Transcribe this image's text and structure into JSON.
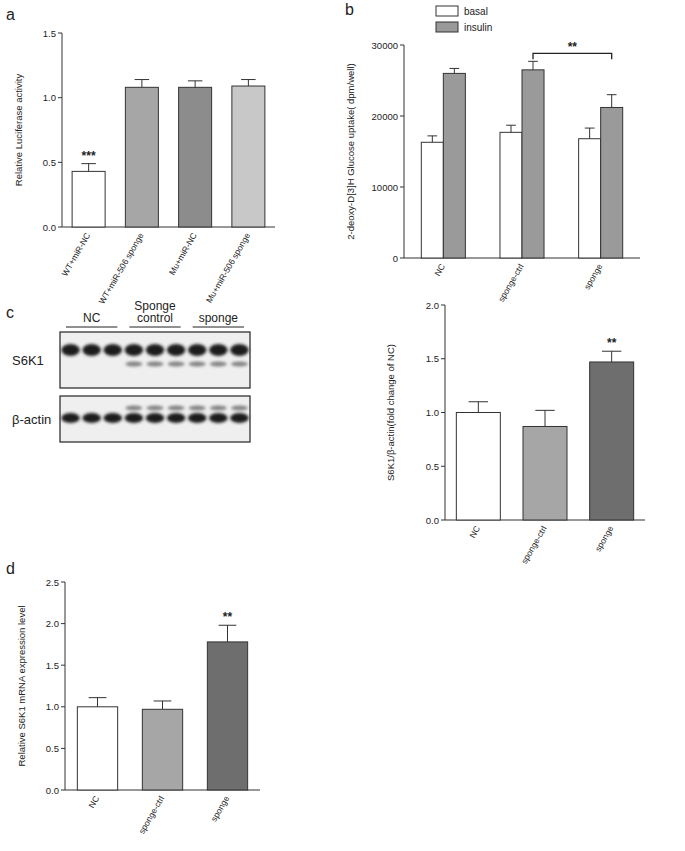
{
  "panels": [
    "a",
    "b",
    "c",
    "d"
  ],
  "blot": {
    "groups": [
      "NC",
      "Sponge control",
      "sponge"
    ],
    "rows": [
      "S6K1",
      "β-actin"
    ],
    "lanes_per_group": 3
  },
  "chart_data": [
    {
      "type": "bar",
      "y_label": "Relative Luciferase activity",
      "categories": [
        "WT+miR-NC",
        "WT+miR-506 sponge",
        "Mu+miR-NC",
        "Mu+miR-506 sponge"
      ],
      "values": [
        0.43,
        1.08,
        1.08,
        1.09
      ],
      "errors": [
        0.06,
        0.06,
        0.05,
        0.05
      ],
      "colors": [
        "#ffffff",
        "#a6a6a6",
        "#8c8c8c",
        "#c8c8c8"
      ],
      "annotations": [
        "***",
        null,
        null,
        null
      ],
      "ylim": [
        0,
        1.5
      ],
      "yticks": [
        {
          "value": 0,
          "label": "0.0"
        },
        {
          "value": 0.5,
          "label": "0.5"
        },
        {
          "value": 1.0,
          "label": "1.0"
        },
        {
          "value": 1.5,
          "label": "1.5"
        }
      ],
      "grid": false
    },
    {
      "type": "bar",
      "y_label": "2-deoxy-D[3]H Glucose uptake( dpm/well)",
      "categories": [
        "NC",
        "sponge-ctrl",
        "sponge"
      ],
      "series": [
        {
          "name": "basal",
          "color": "#ffffff",
          "values": [
            16300,
            17700,
            16800
          ],
          "errors": [
            900,
            1000,
            1500
          ]
        },
        {
          "name": "insulin",
          "color": "#9a9a9a",
          "values": [
            26000,
            26500,
            21200
          ],
          "errors": [
            700,
            1200,
            1800
          ]
        }
      ],
      "bracket": {
        "text": "**",
        "between": [
          "sponge-ctrl",
          "sponge"
        ],
        "series": "insulin"
      },
      "ylim": [
        0,
        30000
      ],
      "yticks": [
        0,
        10000,
        20000,
        30000
      ],
      "legend": "top-left",
      "grid": false
    },
    {
      "type": "bar",
      "y_label": "S6K1/β-actin(fold change of NC)",
      "categories": [
        "NC",
        "sponge-ctrl",
        "sponge"
      ],
      "values": [
        1.0,
        0.87,
        1.47
      ],
      "errors": [
        0.1,
        0.15,
        0.1
      ],
      "colors": [
        "#ffffff",
        "#a6a6a6",
        "#6e6e6e"
      ],
      "annotations": [
        null,
        null,
        "**"
      ],
      "ylim": [
        0,
        2.0
      ],
      "yticks": [
        {
          "value": 0,
          "label": "0.0"
        },
        {
          "value": 0.5,
          "label": "0.5"
        },
        {
          "value": 1.0,
          "label": "1.0"
        },
        {
          "value": 1.5,
          "label": "1.5"
        },
        {
          "value": 2.0,
          "label": "2.0"
        }
      ],
      "grid": false
    },
    {
      "type": "bar",
      "y_label": "Relative S6K1 mRNA expression level",
      "categories": [
        "NC",
        "sponge-ctrl",
        "sponge"
      ],
      "values": [
        1.0,
        0.97,
        1.78
      ],
      "errors": [
        0.11,
        0.1,
        0.2
      ],
      "colors": [
        "#ffffff",
        "#a6a6a6",
        "#6e6e6e"
      ],
      "annotations": [
        null,
        null,
        "**"
      ],
      "ylim": [
        0,
        2.5
      ],
      "yticks": [
        {
          "value": 0,
          "label": "0.0"
        },
        {
          "value": 0.5,
          "label": "0.5"
        },
        {
          "value": 1.0,
          "label": "1.0"
        },
        {
          "value": 1.5,
          "label": "1.5"
        },
        {
          "value": 2.0,
          "label": "2.0"
        },
        {
          "value": 2.5,
          "label": "2.5"
        }
      ],
      "grid": false
    }
  ]
}
